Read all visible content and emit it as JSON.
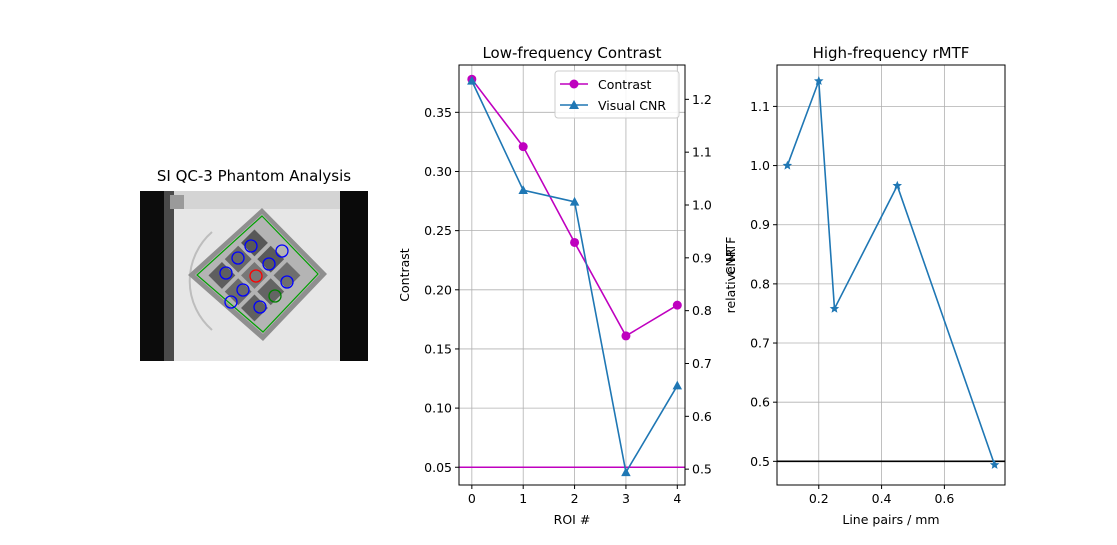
{
  "chart_data": [
    {
      "type": "image",
      "title": "SI QC-3 Phantom Analysis",
      "roi_colors": {
        "low_contrast": "#0000ff",
        "reference": "#ff0000",
        "background": "#008000"
      }
    },
    {
      "type": "line",
      "title": "Low-frequency Contrast",
      "xlabel": "ROI #",
      "ylabel": "Contrast",
      "ylabel_right": "CNR",
      "x": [
        0,
        1,
        2,
        3,
        4
      ],
      "xlim": [
        -0.25,
        4.15
      ],
      "ylim": [
        0.035,
        0.39
      ],
      "ylim_right": [
        0.47,
        1.265
      ],
      "xticks": [
        "0",
        "1",
        "2",
        "3",
        "4"
      ],
      "yticks": [
        "0.05",
        "0.10",
        "0.15",
        "0.20",
        "0.25",
        "0.30",
        "0.35"
      ],
      "yticks_right": [
        "0.5",
        "0.6",
        "0.7",
        "0.8",
        "0.9",
        "1.0",
        "1.1",
        "1.2"
      ],
      "grid": true,
      "legend": "top-right",
      "series": [
        {
          "name": "Contrast",
          "axis": "left",
          "color": "#bf00bf",
          "marker": "circle",
          "values": [
            0.378,
            0.321,
            0.24,
            0.161,
            0.187
          ]
        },
        {
          "name": "Visual CNR",
          "axis": "right",
          "color": "#1f77b4",
          "marker": "triangle",
          "values": [
            1.235,
            1.028,
            1.006,
            0.494,
            0.658
          ]
        }
      ],
      "hline": {
        "value": 0.05,
        "axis": "left",
        "color": "#bf00bf"
      }
    },
    {
      "type": "line",
      "title": "High-frequency rMTF",
      "xlabel": "Line pairs / mm",
      "ylabel": "relative MTF",
      "x": [
        0.1,
        0.2,
        0.25,
        0.45,
        0.76
      ],
      "xlim": [
        0.067,
        0.793
      ],
      "ylim": [
        0.46,
        1.17
      ],
      "xticks": [
        "0.2",
        "0.4",
        "0.6"
      ],
      "yticks": [
        "0.5",
        "0.6",
        "0.7",
        "0.8",
        "0.9",
        "1.0",
        "1.1"
      ],
      "grid": true,
      "series": [
        {
          "color": "#1f77b4",
          "marker": "star",
          "values": [
            1.0,
            1.143,
            0.758,
            0.966,
            0.494
          ]
        }
      ],
      "hline": {
        "value": 0.5,
        "color": "#000000"
      }
    }
  ]
}
